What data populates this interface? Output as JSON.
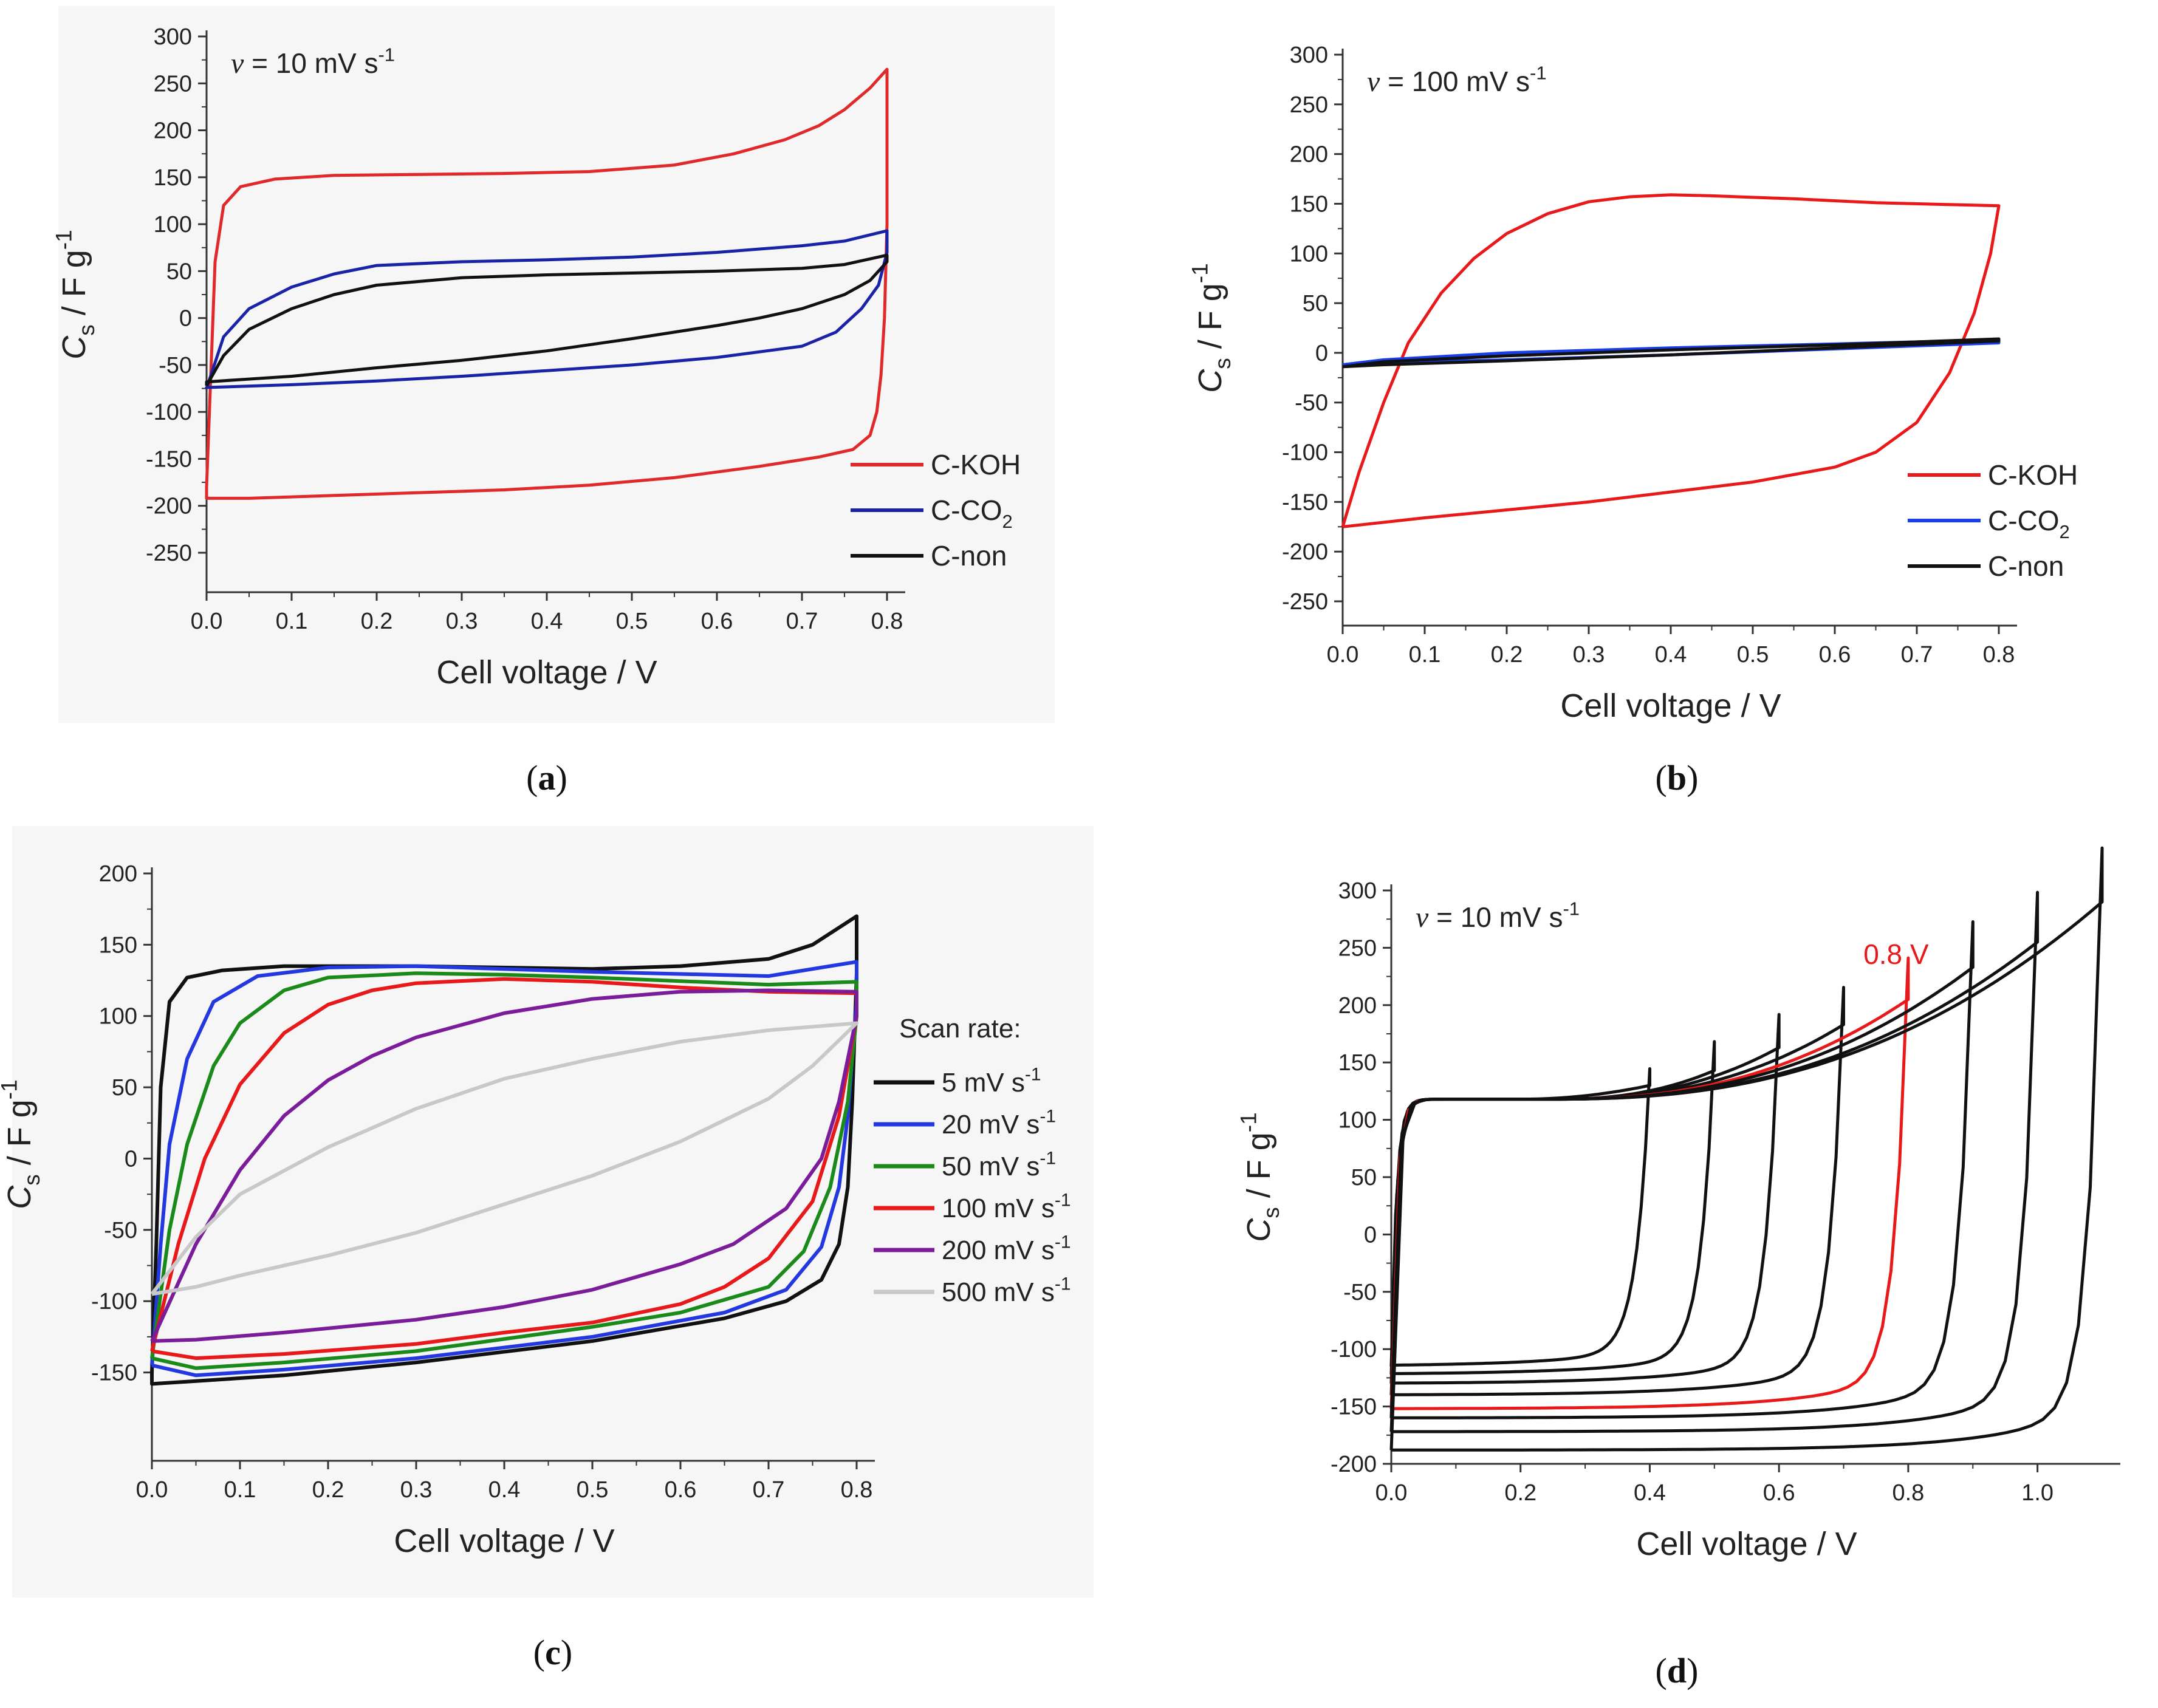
{
  "chart_data": [
    {
      "id": "a",
      "type": "line",
      "caption": "a",
      "xlabel": "Cell voltage / V",
      "ylabel": "C_s / F g^-1",
      "xlim": [
        0.0,
        0.8
      ],
      "ylim": [
        -250,
        300
      ],
      "xticks": [
        0.0,
        0.1,
        0.2,
        0.3,
        0.4,
        0.5,
        0.6,
        0.7,
        0.8
      ],
      "yticks": [
        -250,
        -200,
        -150,
        -100,
        -50,
        0,
        50,
        100,
        150,
        200,
        250,
        300
      ],
      "annotation": "ν = 10 mV s^-1",
      "legend_position": "bottom-right",
      "series": [
        {
          "name": "C-KOH",
          "color": "#e0292b",
          "x": [
            0.0,
            0.005,
            0.01,
            0.02,
            0.04,
            0.08,
            0.15,
            0.25,
            0.35,
            0.45,
            0.55,
            0.62,
            0.68,
            0.72,
            0.75,
            0.78,
            0.8,
            0.8,
            0.797,
            0.793,
            0.788,
            0.78,
            0.76,
            0.72,
            0.65,
            0.55,
            0.45,
            0.35,
            0.25,
            0.15,
            0.05,
            0.0,
            0.0
          ],
          "y": [
            -180,
            -60,
            60,
            120,
            140,
            148,
            152,
            153,
            154,
            156,
            163,
            175,
            190,
            205,
            222,
            245,
            265,
            100,
            0,
            -60,
            -100,
            -125,
            -140,
            -148,
            -158,
            -170,
            -178,
            -183,
            -186,
            -189,
            -192,
            -192,
            -180
          ]
        },
        {
          "name": "C-CO_2",
          "color": "#1a23a8",
          "x": [
            0.0,
            0.02,
            0.05,
            0.1,
            0.15,
            0.2,
            0.3,
            0.4,
            0.5,
            0.6,
            0.7,
            0.75,
            0.8,
            0.8,
            0.79,
            0.77,
            0.74,
            0.7,
            0.6,
            0.5,
            0.4,
            0.3,
            0.2,
            0.1,
            0.0,
            0.0
          ],
          "y": [
            -75,
            -20,
            10,
            33,
            47,
            56,
            60,
            62,
            65,
            70,
            77,
            82,
            93,
            70,
            35,
            10,
            -15,
            -30,
            -42,
            -50,
            -56,
            -62,
            -67,
            -71,
            -74,
            -75
          ]
        },
        {
          "name": "C-non",
          "color": "#111111",
          "x": [
            0.0,
            0.02,
            0.05,
            0.1,
            0.15,
            0.2,
            0.3,
            0.4,
            0.5,
            0.6,
            0.7,
            0.75,
            0.8,
            0.8,
            0.78,
            0.75,
            0.7,
            0.65,
            0.6,
            0.5,
            0.4,
            0.3,
            0.2,
            0.1,
            0.0,
            0.0
          ],
          "y": [
            -72,
            -40,
            -12,
            10,
            25,
            35,
            43,
            46,
            48,
            50,
            53,
            57,
            67,
            60,
            40,
            25,
            10,
            0,
            -8,
            -22,
            -35,
            -45,
            -53,
            -62,
            -68,
            -72
          ]
        }
      ]
    },
    {
      "id": "b",
      "type": "line",
      "caption": "b",
      "xlabel": "Cell voltage / V",
      "ylabel": "C_s / F g^-1",
      "xlim": [
        0.0,
        0.8
      ],
      "ylim": [
        -250,
        300
      ],
      "xticks": [
        0.0,
        0.1,
        0.2,
        0.3,
        0.4,
        0.5,
        0.6,
        0.7,
        0.8
      ],
      "yticks": [
        -250,
        -200,
        -150,
        -100,
        -50,
        0,
        50,
        100,
        150,
        200,
        250,
        300
      ],
      "annotation": "ν = 100 mV s^-1",
      "legend_position": "bottom-right",
      "series": [
        {
          "name": "C-KOH",
          "color": "#e8191b",
          "x": [
            0.0,
            0.02,
            0.05,
            0.08,
            0.12,
            0.16,
            0.2,
            0.25,
            0.3,
            0.35,
            0.4,
            0.45,
            0.55,
            0.65,
            0.75,
            0.8,
            0.8,
            0.79,
            0.77,
            0.74,
            0.7,
            0.65,
            0.6,
            0.5,
            0.4,
            0.3,
            0.2,
            0.1,
            0.0,
            0.0
          ],
          "y": [
            -175,
            -120,
            -50,
            10,
            60,
            95,
            120,
            140,
            152,
            157,
            159,
            158,
            155,
            151,
            149,
            148,
            148,
            100,
            40,
            -20,
            -70,
            -100,
            -115,
            -130,
            -140,
            -150,
            -158,
            -166,
            -175,
            -175
          ]
        },
        {
          "name": "C-CO_2",
          "color": "#1a3ee8",
          "x": [
            0.0,
            0.05,
            0.2,
            0.4,
            0.6,
            0.8,
            0.8,
            0.6,
            0.4,
            0.2,
            0.05,
            0.0
          ],
          "y": [
            -12,
            -7,
            0,
            5,
            9,
            13,
            10,
            4,
            -2,
            -7,
            -10,
            -12
          ]
        },
        {
          "name": "C-non",
          "color": "#111111",
          "x": [
            0.0,
            0.05,
            0.2,
            0.4,
            0.6,
            0.8,
            0.8,
            0.6,
            0.4,
            0.2,
            0.05,
            0.0
          ],
          "y": [
            -14,
            -9,
            -3,
            3,
            8,
            14,
            12,
            5,
            -2,
            -8,
            -12,
            -14
          ]
        }
      ]
    },
    {
      "id": "c",
      "type": "line",
      "caption": "c",
      "xlabel": "Cell voltage / V",
      "ylabel": "C_s / F g^-1",
      "xlim": [
        0.0,
        0.8
      ],
      "ylim": [
        -180,
        200
      ],
      "xticks": [
        0.0,
        0.1,
        0.2,
        0.3,
        0.4,
        0.5,
        0.6,
        0.7,
        0.8
      ],
      "yticks": [
        -150,
        -100,
        -50,
        0,
        50,
        100,
        150,
        200
      ],
      "legend_title": "Scan rate:",
      "legend_position": "right",
      "series": [
        {
          "name": "5 mV s^-1",
          "color": "#111111",
          "x": [
            0.0,
            0.005,
            0.01,
            0.02,
            0.04,
            0.08,
            0.15,
            0.3,
            0.5,
            0.6,
            0.7,
            0.75,
            0.8,
            0.8,
            0.795,
            0.79,
            0.78,
            0.76,
            0.72,
            0.65,
            0.5,
            0.3,
            0.15,
            0.05,
            0.0,
            0.0
          ],
          "y": [
            -150,
            -60,
            50,
            110,
            127,
            132,
            135,
            135,
            133,
            135,
            140,
            150,
            170,
            130,
            40,
            -20,
            -60,
            -85,
            -100,
            -112,
            -128,
            -143,
            -152,
            -156,
            -158,
            -150
          ]
        },
        {
          "name": "20 mV s^-1",
          "color": "#2438e0",
          "x": [
            0.0,
            0.01,
            0.02,
            0.04,
            0.07,
            0.12,
            0.2,
            0.3,
            0.5,
            0.7,
            0.8,
            0.8,
            0.79,
            0.78,
            0.76,
            0.72,
            0.65,
            0.5,
            0.3,
            0.15,
            0.05,
            0.0
          ],
          "y": [
            -145,
            -60,
            10,
            70,
            110,
            128,
            134,
            135,
            131,
            128,
            138,
            110,
            30,
            -20,
            -62,
            -92,
            -108,
            -125,
            -140,
            -148,
            -152,
            -145
          ]
        },
        {
          "name": "50 mV s^-1",
          "color": "#1a8a1a",
          "x": [
            0.0,
            0.02,
            0.04,
            0.07,
            0.1,
            0.15,
            0.2,
            0.3,
            0.4,
            0.5,
            0.7,
            0.8,
            0.8,
            0.79,
            0.77,
            0.74,
            0.7,
            0.6,
            0.5,
            0.3,
            0.15,
            0.05,
            0.0
          ],
          "y": [
            -140,
            -50,
            10,
            65,
            95,
            118,
            127,
            130,
            129,
            127,
            122,
            124,
            100,
            40,
            -20,
            -65,
            -90,
            -108,
            -118,
            -135,
            -143,
            -147,
            -140
          ]
        },
        {
          "name": "100 mV s^-1",
          "color": "#e8191b",
          "x": [
            0.0,
            0.03,
            0.06,
            0.1,
            0.15,
            0.2,
            0.25,
            0.3,
            0.4,
            0.5,
            0.6,
            0.7,
            0.8,
            0.8,
            0.78,
            0.75,
            0.7,
            0.65,
            0.6,
            0.5,
            0.4,
            0.3,
            0.15,
            0.05,
            0.0
          ],
          "y": [
            -135,
            -60,
            0,
            52,
            88,
            108,
            118,
            123,
            126,
            124,
            120,
            117,
            116,
            100,
            30,
            -30,
            -70,
            -90,
            -102,
            -115,
            -122,
            -130,
            -137,
            -140,
            -135
          ]
        },
        {
          "name": "200 mV s^-1",
          "color": "#7b1c9a",
          "x": [
            0.0,
            0.05,
            0.1,
            0.15,
            0.2,
            0.25,
            0.3,
            0.4,
            0.5,
            0.6,
            0.7,
            0.8,
            0.8,
            0.78,
            0.76,
            0.72,
            0.66,
            0.6,
            0.5,
            0.4,
            0.3,
            0.15,
            0.05,
            0.0
          ],
          "y": [
            -128,
            -60,
            -8,
            30,
            55,
            72,
            85,
            102,
            112,
            117,
            118,
            117,
            100,
            40,
            0,
            -35,
            -60,
            -74,
            -92,
            -104,
            -113,
            -122,
            -127,
            -128
          ]
        },
        {
          "name": "500 mV s^-1",
          "color": "#c8c8c8",
          "x": [
            0.0,
            0.05,
            0.1,
            0.2,
            0.3,
            0.4,
            0.5,
            0.6,
            0.7,
            0.8,
            0.8,
            0.75,
            0.7,
            0.6,
            0.5,
            0.4,
            0.3,
            0.2,
            0.1,
            0.05,
            0.0
          ],
          "y": [
            -95,
            -55,
            -25,
            8,
            35,
            56,
            70,
            82,
            90,
            95,
            95,
            65,
            42,
            12,
            -12,
            -32,
            -52,
            -68,
            -82,
            -90,
            -95
          ]
        }
      ]
    },
    {
      "id": "d",
      "type": "line",
      "caption": "d",
      "xlabel": "Cell voltage / V",
      "ylabel": "C_s / F g^-1",
      "xlim": [
        0.0,
        1.1
      ],
      "ylim": [
        -200,
        300
      ],
      "xticks": [
        0.0,
        0.2,
        0.4,
        0.6,
        0.8,
        1.0
      ],
      "yticks": [
        -200,
        -150,
        -100,
        -50,
        0,
        50,
        100,
        150,
        200,
        250,
        300
      ],
      "annotation": "ν = 10 mV s^-1",
      "highlight_label": "0.8 V",
      "series": [
        {
          "vmax": 0.4,
          "peak": 130,
          "bottom": -115,
          "color": "#111111"
        },
        {
          "vmax": 0.5,
          "peak": 150,
          "bottom": -122,
          "color": "#111111"
        },
        {
          "vmax": 0.6,
          "peak": 170,
          "bottom": -130,
          "color": "#111111"
        },
        {
          "vmax": 0.7,
          "peak": 190,
          "bottom": -140,
          "color": "#111111"
        },
        {
          "vmax": 0.8,
          "peak": 212,
          "bottom": -152,
          "color": "#e8191b",
          "highlight": true
        },
        {
          "vmax": 0.9,
          "peak": 240,
          "bottom": -160,
          "color": "#111111"
        },
        {
          "vmax": 1.0,
          "peak": 262,
          "bottom": -172,
          "color": "#111111"
        },
        {
          "vmax": 1.1,
          "peak": 297,
          "bottom": -188,
          "color": "#111111"
        }
      ]
    }
  ]
}
